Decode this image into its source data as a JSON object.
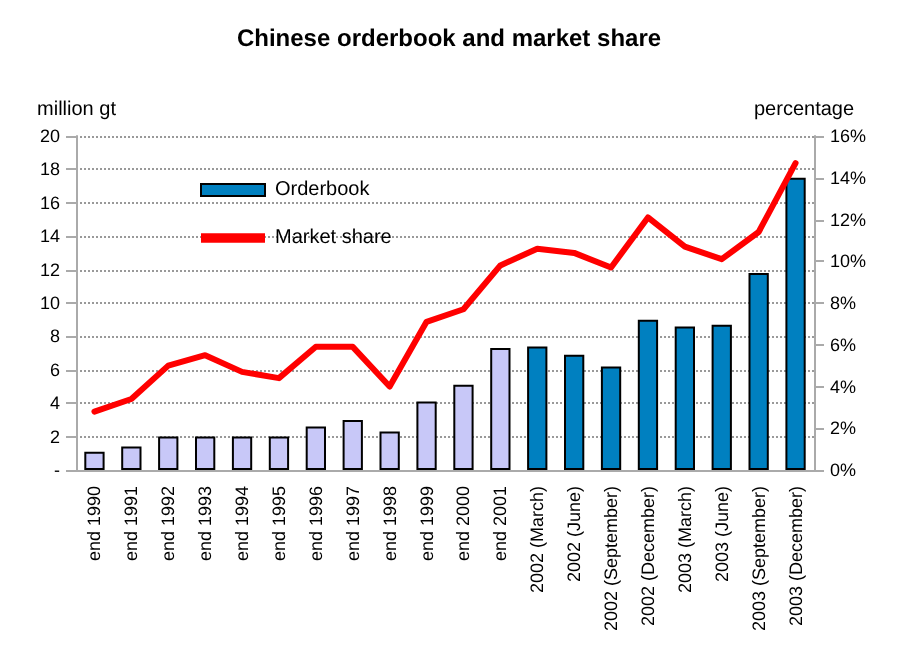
{
  "chart_data": {
    "type": "bar",
    "title": "Chinese orderbook and market share",
    "ylabel": "million gt",
    "y2label": "percentage",
    "categories": [
      "end 1990",
      "end 1991",
      "end 1992",
      "end 1993",
      "end 1994",
      "end 1995",
      "end 1996",
      "end 1997",
      "end 1998",
      "end 1999",
      "end 2000",
      "end 2001",
      "2002 (March)",
      "2002 (June)",
      "2002 (September)",
      "2002 (December)",
      "2003 (March)",
      "2003 (June)",
      "2003 (September)",
      "2003 (December)"
    ],
    "series": [
      {
        "name": "Orderbook",
        "color": "#0080c0",
        "colors": [
          "#c8c8f8",
          "#c8c8f8",
          "#c8c8f8",
          "#c8c8f8",
          "#c8c8f8",
          "#c8c8f8",
          "#c8c8f8",
          "#c8c8f8",
          "#c8c8f8",
          "#c8c8f8",
          "#c8c8f8",
          "#c8c8f8",
          "#0080c0",
          "#0080c0",
          "#0080c0",
          "#0080c0",
          "#0080c0",
          "#0080c0",
          "#0080c0",
          "#0080c0"
        ],
        "values": [
          1.1,
          1.4,
          2,
          2,
          2,
          2,
          2.6,
          3,
          2.3,
          4.1,
          5.1,
          7.3,
          7.4,
          6.9,
          6.2,
          9,
          8.6,
          8.7,
          11.8,
          17.5
        ]
      },
      {
        "name": "Market share",
        "type": "line",
        "axis": "y2",
        "color": "#ff0000",
        "values": [
          2.8,
          3.4,
          5.0,
          5.5,
          4.7,
          4.4,
          5.9,
          5.9,
          4.0,
          7.1,
          7.7,
          9.8,
          10.6,
          10.4,
          9.7,
          12.1,
          10.7,
          10.1,
          11.4,
          14.7
        ]
      }
    ],
    "ylim": [
      0,
      20
    ],
    "yticks": [
      {
        "value": 0,
        "label": "-"
      },
      2,
      4,
      6,
      8,
      10,
      12,
      14,
      16,
      18,
      20
    ],
    "y2lim": [
      0,
      16
    ],
    "y2ticks": [
      {
        "value": 0,
        "label": "0%"
      },
      {
        "value": 2,
        "label": "2%"
      },
      {
        "value": 4,
        "label": "4%"
      },
      {
        "value": 6,
        "label": "6%"
      },
      {
        "value": 8,
        "label": "8%"
      },
      {
        "value": 10,
        "label": "10%"
      },
      {
        "value": 12,
        "label": "12%"
      },
      {
        "value": 14,
        "label": "14%"
      },
      {
        "value": 16,
        "label": "16%"
      }
    ],
    "grid": "y",
    "legend": "top left",
    "line_style": "solid"
  }
}
